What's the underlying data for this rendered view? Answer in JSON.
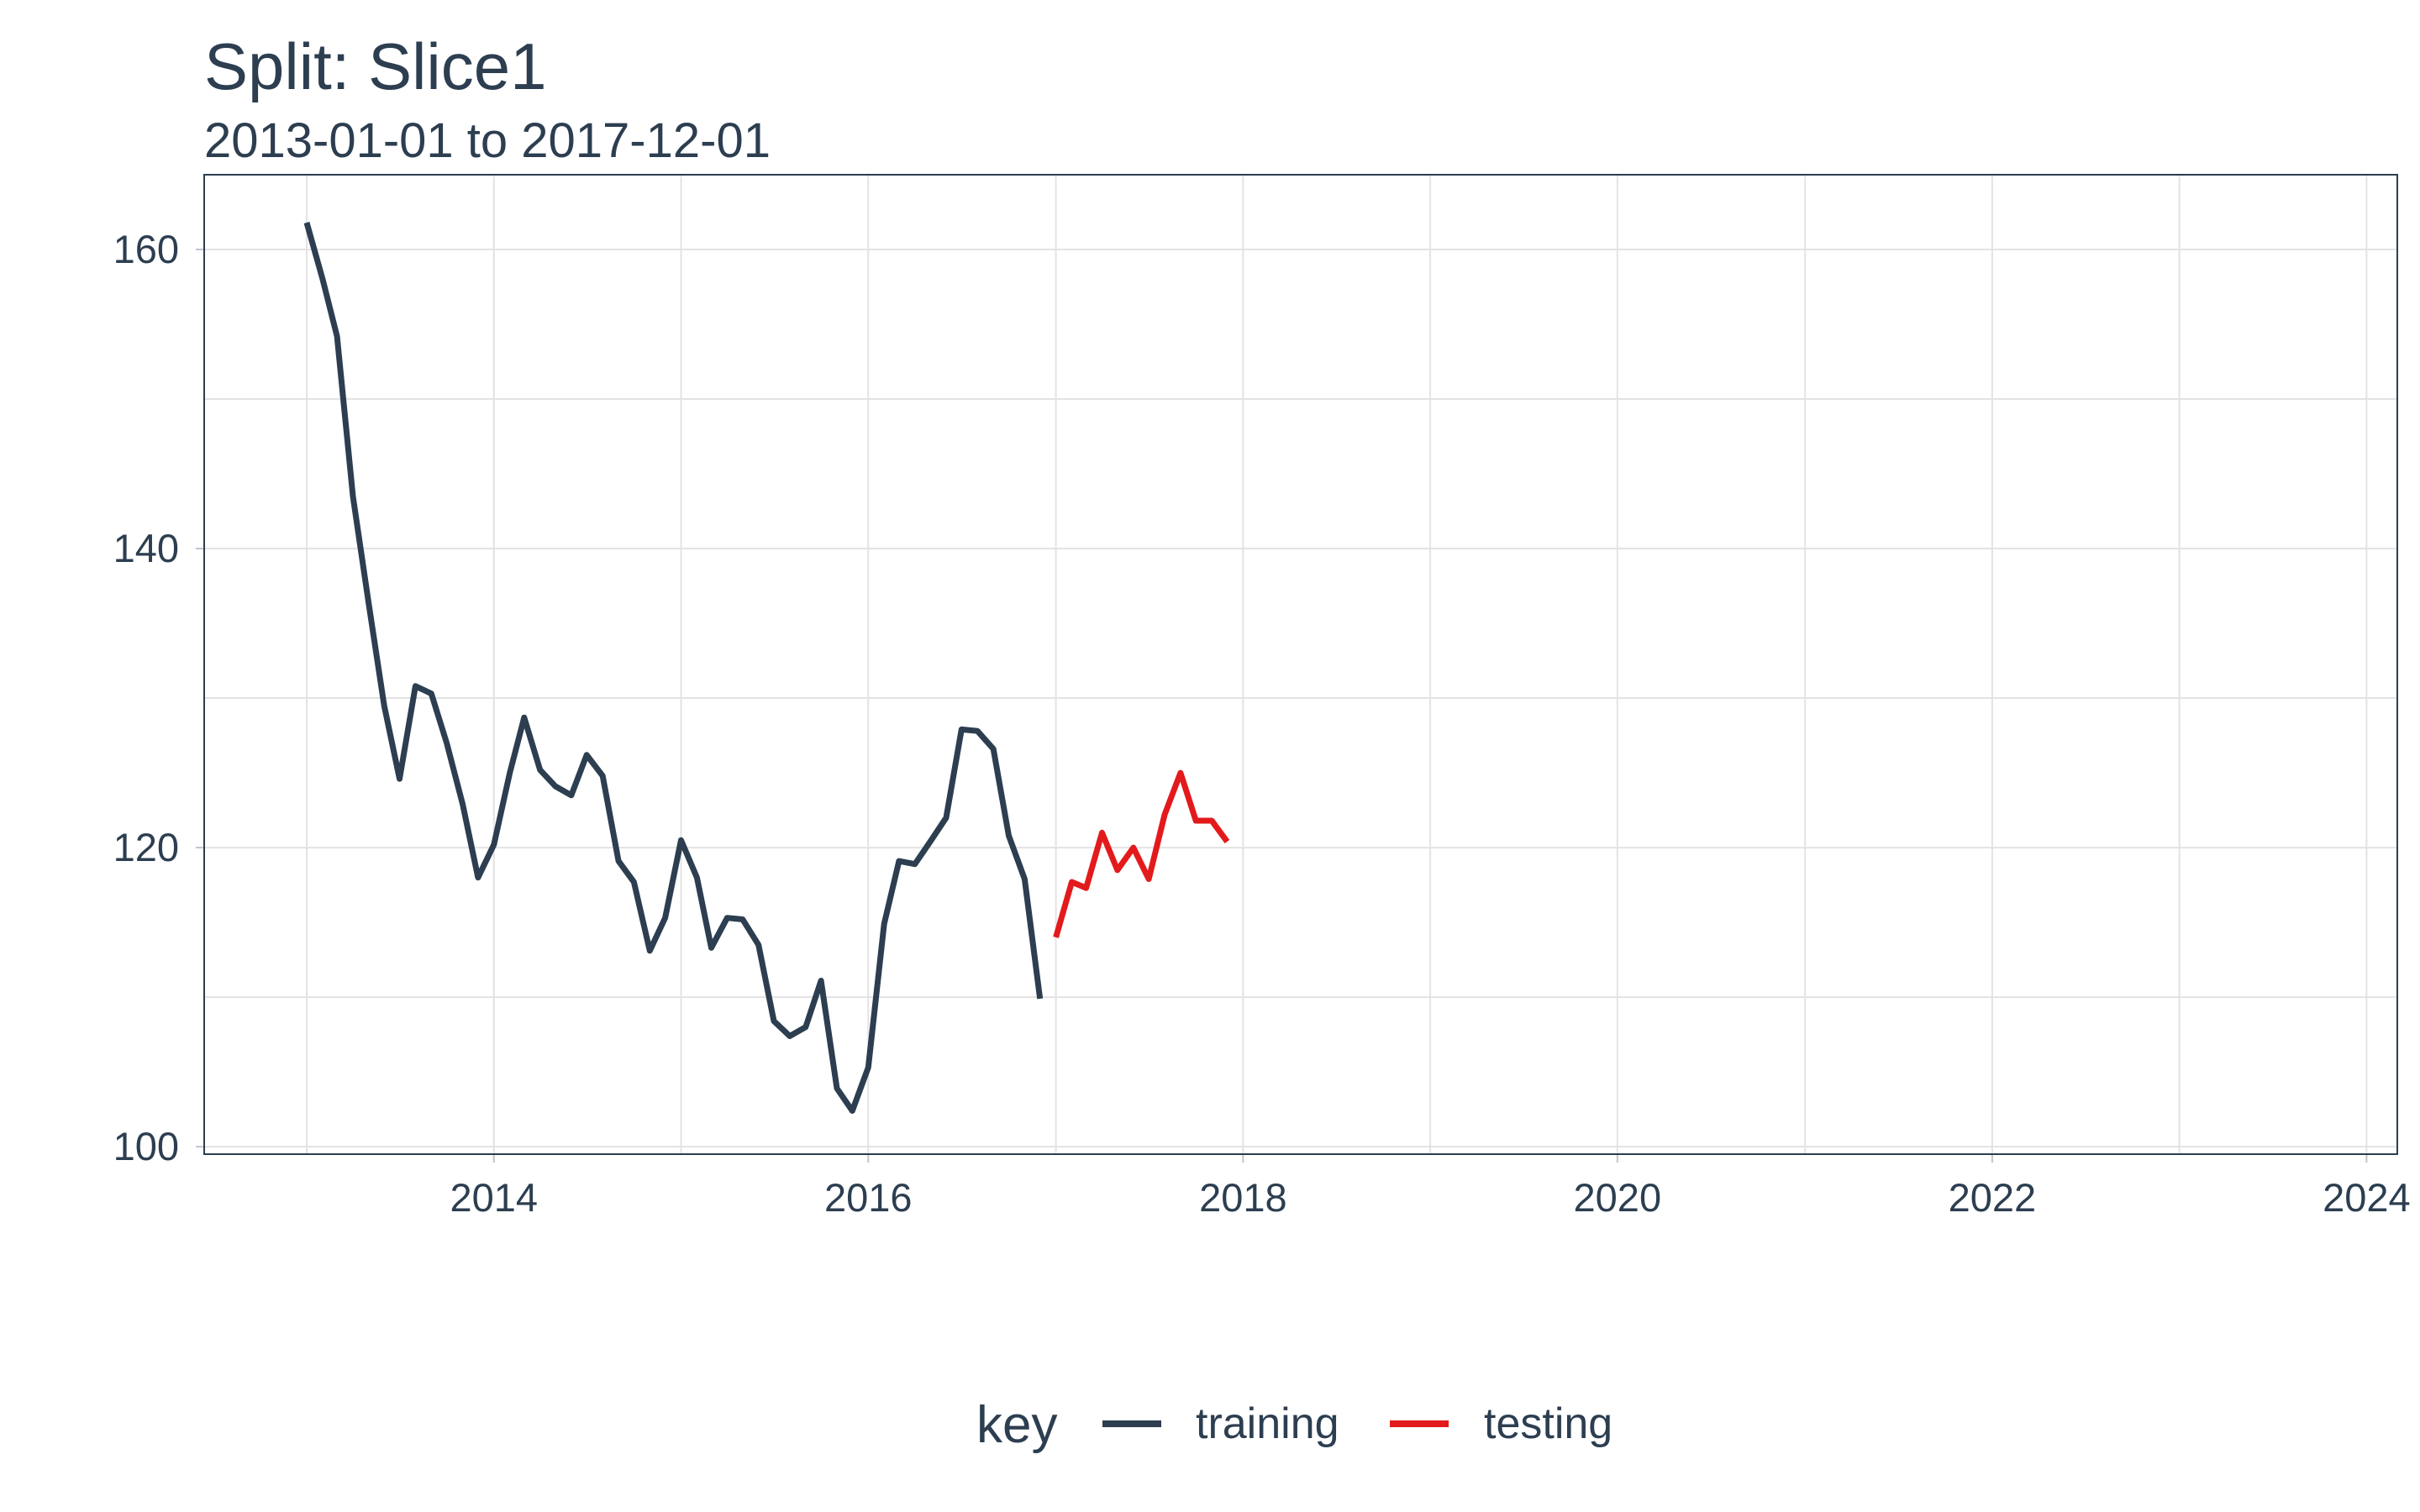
{
  "chart_data": {
    "type": "line",
    "title": "Split: Slice1",
    "subtitle": "2013-01-01 to 2017-12-01",
    "xlabel": "",
    "ylabel": "",
    "xlim": [
      "2012-06-15",
      "2024-03-01"
    ],
    "ylim": [
      99.5,
      165
    ],
    "x_ticks": [
      "2014",
      "2016",
      "2018",
      "2020",
      "2022",
      "2024"
    ],
    "y_ticks": [
      100,
      120,
      140,
      160
    ],
    "grid": true,
    "legend": {
      "title": "key",
      "position": "bottom",
      "entries": [
        "training",
        "testing"
      ]
    },
    "series": [
      {
        "name": "training",
        "color": "#2c3e50",
        "x": [
          "2013-01-01",
          "2013-02-01",
          "2013-03-01",
          "2013-04-01",
          "2013-05-01",
          "2013-06-01",
          "2013-07-01",
          "2013-08-01",
          "2013-09-01",
          "2013-10-01",
          "2013-11-01",
          "2013-12-01",
          "2014-01-01",
          "2014-02-01",
          "2014-03-01",
          "2014-04-01",
          "2014-05-01",
          "2014-06-01",
          "2014-07-01",
          "2014-08-01",
          "2014-09-01",
          "2014-10-01",
          "2014-11-01",
          "2014-12-01",
          "2015-01-01",
          "2015-02-01",
          "2015-03-01",
          "2015-04-01",
          "2015-05-01",
          "2015-06-01",
          "2015-07-01",
          "2015-08-01",
          "2015-09-01",
          "2015-10-01",
          "2015-11-01",
          "2015-12-01",
          "2016-01-01",
          "2016-02-01",
          "2016-03-01",
          "2016-04-01",
          "2016-05-01",
          "2016-06-01",
          "2016-07-01",
          "2016-08-01",
          "2016-09-01",
          "2016-10-01",
          "2016-11-01",
          "2016-12-01"
        ],
        "y": [
          161.8,
          158.0,
          154.2,
          143.5,
          136.5,
          129.5,
          124.6,
          130.8,
          130.3,
          127.0,
          122.9,
          118.0,
          120.2,
          125.0,
          128.7,
          125.2,
          124.1,
          123.5,
          126.2,
          124.8,
          119.1,
          117.7,
          113.1,
          115.3,
          120.5,
          118.0,
          113.3,
          115.3,
          115.2,
          113.5,
          108.4,
          107.4,
          108.0,
          111.1,
          103.9,
          102.4,
          105.3,
          114.9,
          119.1,
          118.9,
          120.4,
          122.0,
          127.9,
          127.8,
          126.6,
          120.8,
          117.9,
          109.9
        ]
      },
      {
        "name": "testing",
        "color": "#e31a1c",
        "x": [
          "2017-01-01",
          "2017-02-01",
          "2017-03-01",
          "2017-04-01",
          "2017-05-01",
          "2017-06-01",
          "2017-07-01",
          "2017-08-01",
          "2017-09-01",
          "2017-10-01",
          "2017-11-01",
          "2017-12-01"
        ],
        "y": [
          114.0,
          117.7,
          117.3,
          121.0,
          118.5,
          120.0,
          117.9,
          122.2,
          125.0,
          121.8,
          121.8,
          120.4
        ]
      }
    ]
  }
}
